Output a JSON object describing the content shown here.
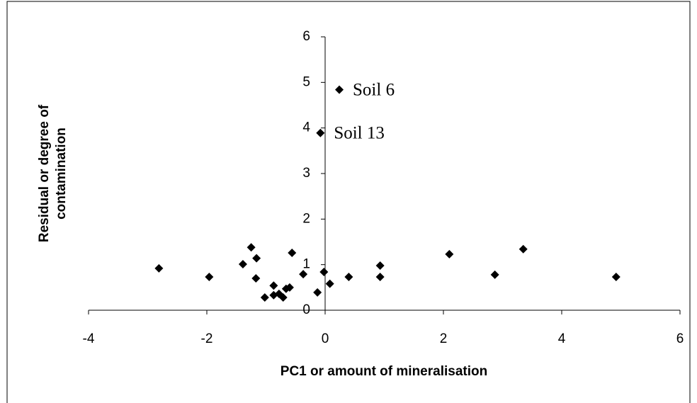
{
  "chart_data": {
    "type": "scatter",
    "xlabel": "PC1 or amount of mineralisation",
    "ylabel": [
      "Residual or degree of",
      "contamination"
    ],
    "x": [
      -2.81,
      -1.96,
      -1.39,
      -1.25,
      -1.17,
      -1.16,
      -1.02,
      -0.87,
      -0.87,
      -0.78,
      -0.71,
      -0.66,
      -0.6,
      -0.56,
      -0.37,
      -0.13,
      -0.08,
      -0.02,
      0.08,
      0.24,
      0.4,
      0.93,
      0.93,
      2.1,
      2.87,
      3.35,
      4.92
    ],
    "values": [
      0.92,
      0.73,
      1.01,
      1.38,
      0.7,
      1.14,
      0.28,
      0.54,
      0.33,
      0.36,
      0.28,
      0.47,
      0.5,
      1.26,
      0.79,
      0.39,
      3.89,
      0.84,
      0.58,
      4.84,
      0.73,
      0.98,
      0.73,
      1.23,
      0.78,
      1.34,
      0.73
    ],
    "color": "#000000",
    "xlim": [
      -4,
      6
    ],
    "xticks": [
      -4,
      -2,
      0,
      2,
      4,
      6
    ],
    "ylim": [
      0,
      6
    ],
    "yticks": [
      0,
      1,
      2,
      3,
      4,
      5,
      6
    ],
    "annotations": [
      {
        "text": "Soil 6",
        "x": 0.24,
        "y": 4.84
      },
      {
        "text": "Soil 13",
        "x": -0.08,
        "y": 3.89
      }
    ]
  }
}
